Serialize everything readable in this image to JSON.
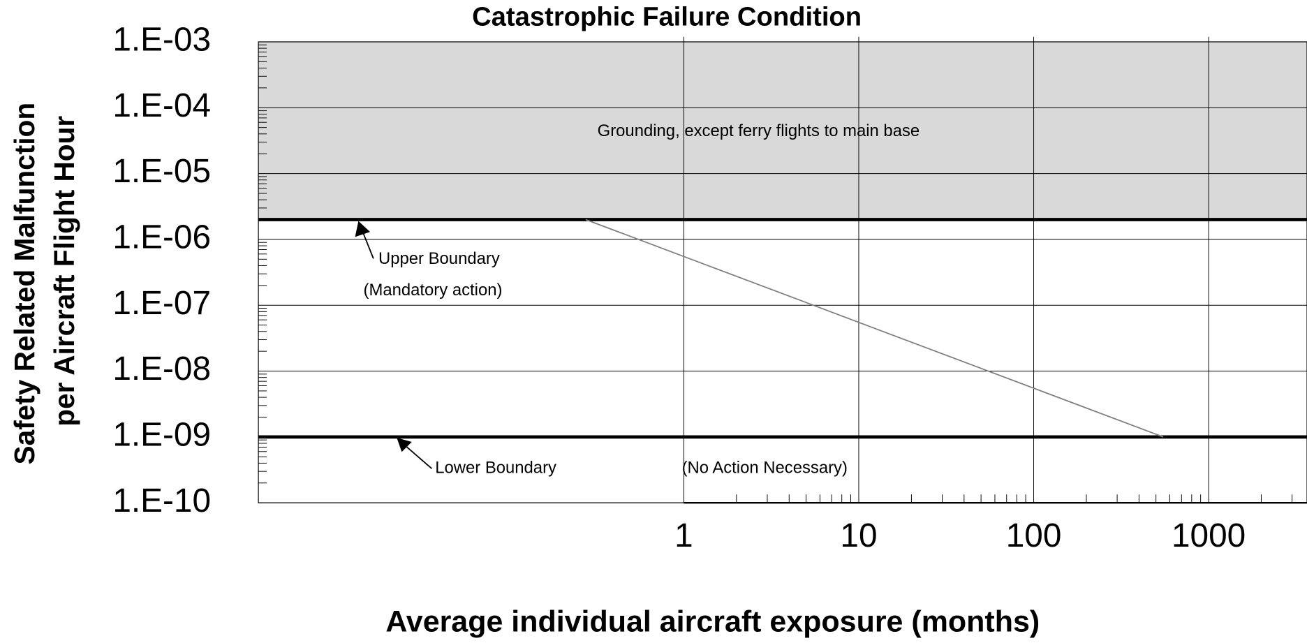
{
  "chart_data": {
    "type": "line",
    "title": "Catastrophic Failure Condition",
    "y_label_lines": [
      "Safety Related Malfunction",
      "per Aircraft Flight Hour"
    ],
    "x_label": "Average individual aircraft exposure (months)",
    "log_x": true,
    "log_y": true,
    "grid": true,
    "xlim": [
      0.0037,
      3650
    ],
    "ylim": [
      1e-10,
      0.001
    ],
    "xticks": [
      1,
      10,
      100,
      1000
    ],
    "yticks": [
      {
        "value": 0.001,
        "label": "1.E-03"
      },
      {
        "value": 0.0001,
        "label": "1.E-04"
      },
      {
        "value": 1e-05,
        "label": "1.E-05"
      },
      {
        "value": 1e-06,
        "label": "1.E-06"
      },
      {
        "value": 1e-07,
        "label": "1.E-07"
      },
      {
        "value": 1e-08,
        "label": "1.E-08"
      },
      {
        "value": 1e-09,
        "label": "1.E-09"
      },
      {
        "value": 1e-10,
        "label": "1.E-10"
      }
    ],
    "hlines": [
      {
        "y": 2e-06,
        "shade_above": true,
        "shade_color": "#d9d9d9"
      },
      {
        "y": 1e-09
      }
    ],
    "series": [
      {
        "color": "#808080",
        "x": [
          0.275,
          550
        ],
        "values": [
          2e-06,
          1e-09
        ]
      }
    ],
    "annotations": [
      "Grounding, except ferry flights to main base",
      "Upper Boundary",
      "(Mandatory action)",
      "Lower Boundary",
      "(No Action Necessary)"
    ]
  }
}
